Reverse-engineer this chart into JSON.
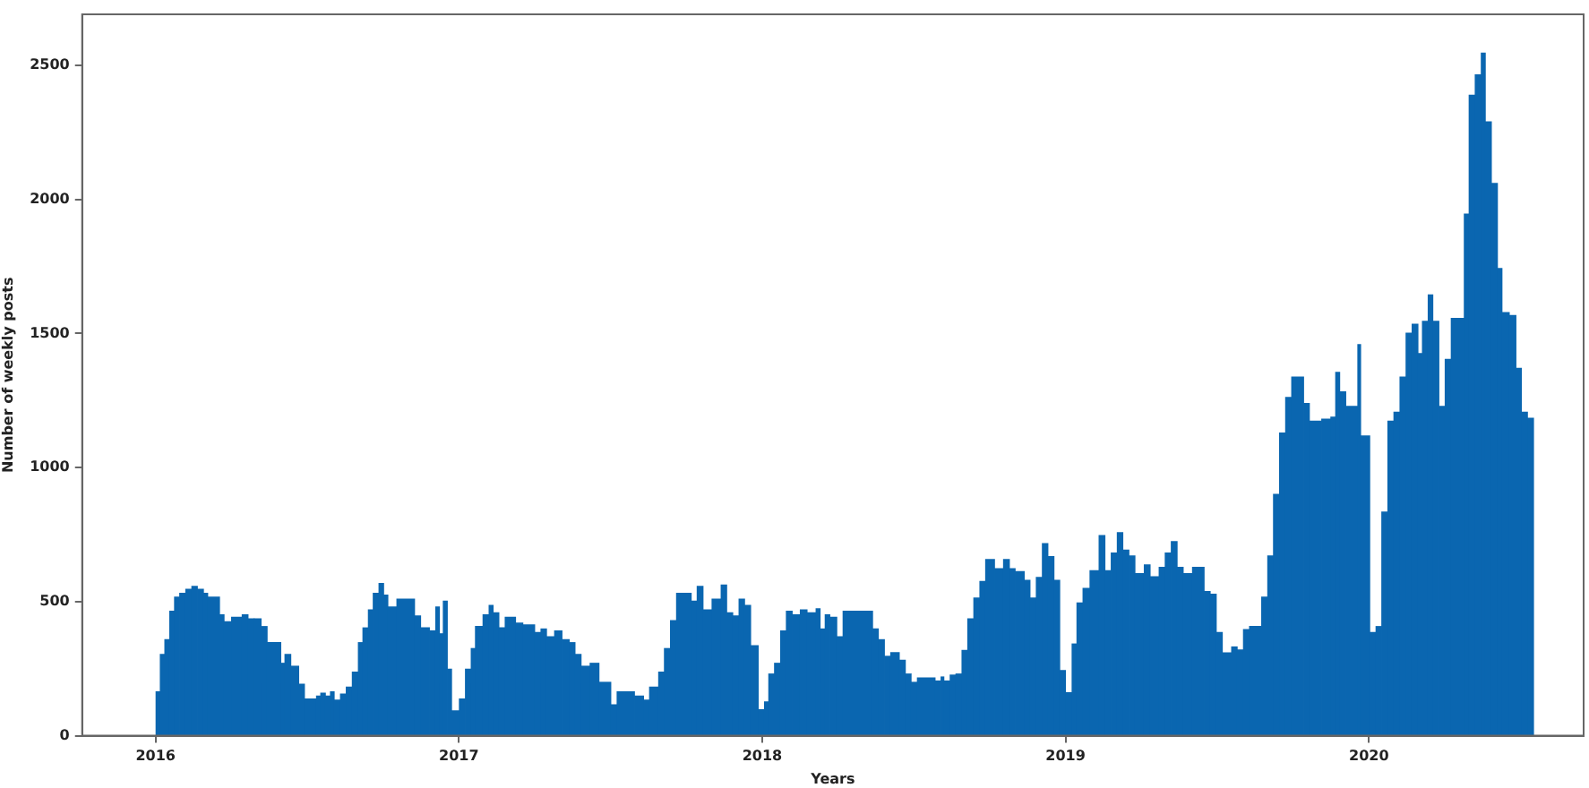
{
  "chart_data": {
    "type": "histogram",
    "xlabel": "Years",
    "ylabel": "Number of weekly posts",
    "color": "#0a66b0",
    "bins": [
      2016.0,
      2016.014,
      2016.029,
      2016.045,
      2016.061,
      2016.078,
      2016.098,
      2016.118,
      2016.137,
      2016.157,
      2016.171,
      2016.21,
      2016.225,
      2016.249,
      2016.284,
      2016.304,
      2016.324,
      2016.347,
      2016.367,
      2016.412,
      2016.425,
      2016.445,
      2016.471,
      2016.49,
      2016.529,
      2016.543,
      2016.559,
      2016.575,
      2016.588,
      2016.608,
      2016.627,
      2016.647,
      2016.667,
      2016.682,
      2016.7,
      2016.716,
      2016.735,
      2016.751,
      2016.765,
      2016.794,
      2016.853,
      2016.873,
      2016.902,
      2016.922,
      2016.935,
      2016.947,
      2016.961,
      2016.975,
      2017.0,
      2017.02,
      2017.039,
      2017.053,
      2017.078,
      2017.098,
      2017.112,
      2017.131,
      2017.151,
      2017.186,
      2017.21,
      2017.249,
      2017.269,
      2017.288,
      2017.314,
      2017.339,
      2017.363,
      2017.382,
      2017.402,
      2017.431,
      2017.461,
      2017.5,
      2017.52,
      2017.578,
      2017.608,
      2017.627,
      2017.657,
      2017.676,
      2017.696,
      2017.716,
      2017.765,
      2017.784,
      2017.804,
      2017.833,
      2017.863,
      2017.882,
      2017.902,
      2017.922,
      2017.941,
      2017.961,
      2017.986,
      2018.006,
      2018.02,
      2018.039,
      2018.059,
      2018.078,
      2018.098,
      2018.124,
      2018.147,
      2018.176,
      2018.19,
      2018.206,
      2018.222,
      2018.245,
      2018.265,
      2018.363,
      2018.382,
      2018.402,
      2018.422,
      2018.451,
      2018.471,
      2018.49,
      2018.51,
      2018.569,
      2018.588,
      2018.598,
      2018.618,
      2018.637,
      2018.657,
      2018.676,
      2018.696,
      2018.716,
      2018.735,
      2018.765,
      2018.794,
      2018.814,
      2018.833,
      2018.863,
      2018.882,
      2018.902,
      2018.922,
      2018.941,
      2018.961,
      2018.98,
      2018.999,
      2019.02,
      2019.036,
      2019.056,
      2019.079,
      2019.109,
      2019.129,
      2019.149,
      2019.169,
      2019.188,
      2019.208,
      2019.228,
      2019.258,
      2019.278,
      2019.307,
      2019.327,
      2019.347,
      2019.367,
      2019.387,
      2019.417,
      2019.456,
      2019.476,
      2019.496,
      2019.516,
      2019.546,
      2019.565,
      2019.585,
      2019.605,
      2019.645,
      2019.665,
      2019.684,
      2019.704,
      2019.724,
      2019.744,
      2019.784,
      2019.803,
      2019.843,
      2019.873,
      2019.889,
      2019.903,
      2019.923,
      2019.962,
      2019.972,
      2020.002,
      2020.022,
      2020.041,
      2020.061,
      2020.081,
      2020.101,
      2020.121,
      2020.141,
      2020.161,
      2020.175,
      2020.194,
      2020.21,
      2020.23,
      2020.25,
      2020.27,
      2020.313,
      2020.329,
      2020.349,
      2020.369,
      2020.383,
      2020.403,
      2020.423,
      2020.438,
      2020.462,
      2020.484,
      2020.502,
      2020.522,
      2020.542
    ],
    "values": [
      166,
      305,
      360,
      466,
      519,
      533,
      548,
      559,
      548,
      533,
      519,
      453,
      427,
      444,
      453,
      438,
      438,
      409,
      349,
      272,
      305,
      261,
      194,
      139,
      150,
      161,
      150,
      166,
      135,
      157,
      183,
      239,
      349,
      404,
      471,
      533,
      570,
      526,
      482,
      511,
      449,
      404,
      393,
      482,
      382,
      504,
      250,
      95,
      139,
      250,
      327,
      409,
      453,
      488,
      460,
      404,
      444,
      422,
      415,
      387,
      400,
      371,
      393,
      360,
      349,
      305,
      261,
      272,
      201,
      117,
      166,
      150,
      135,
      183,
      239,
      327,
      431,
      533,
      504,
      559,
      471,
      511,
      564,
      460,
      449,
      511,
      488,
      338,
      99,
      128,
      232,
      272,
      393,
      466,
      453,
      471,
      460,
      475,
      400,
      453,
      444,
      371,
      466,
      400,
      360,
      298,
      312,
      283,
      232,
      201,
      217,
      206,
      221,
      206,
      228,
      232,
      320,
      438,
      515,
      577,
      659,
      625,
      659,
      625,
      614,
      581,
      515,
      592,
      718,
      670,
      581,
      245,
      162,
      344,
      497,
      551,
      617,
      748,
      617,
      683,
      759,
      694,
      672,
      606,
      639,
      595,
      630,
      683,
      726,
      630,
      606,
      630,
      540,
      530,
      387,
      311,
      333,
      322,
      398,
      409,
      519,
      672,
      902,
      1131,
      1263,
      1339,
      1241,
      1175,
      1182,
      1190,
      1357,
      1284,
      1230,
      1460,
      1120,
      387,
      409,
      836,
      1175,
      1208,
      1339,
      1503,
      1536,
      1427,
      1547,
      1646,
      1547,
      1230,
      1405,
      1558,
      1947,
      2390,
      2466,
      2547,
      2291,
      2061,
      1744,
      1580,
      1569,
      1372,
      1208,
      1186
    ],
    "xlim": [
      2015.758,
      2020.708
    ],
    "ylim": [
      0,
      2690
    ],
    "xticks": [
      2016,
      2017,
      2018,
      2019,
      2020
    ],
    "yticks": [
      0,
      500,
      1000,
      1500,
      2000,
      2500
    ],
    "grid": false
  }
}
